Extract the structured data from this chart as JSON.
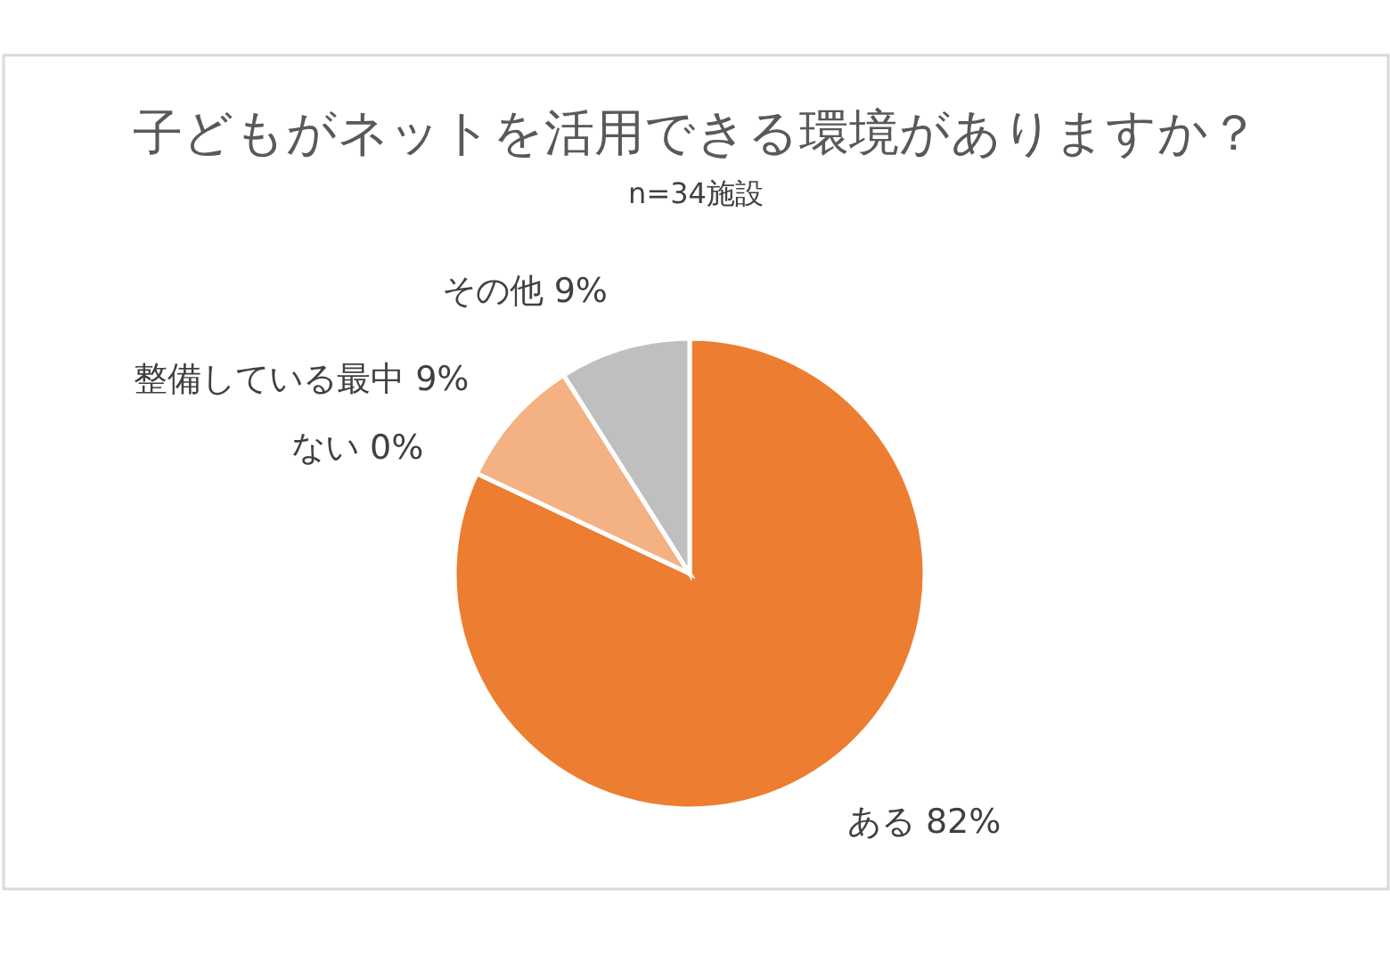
{
  "chart_data": {
    "type": "pie",
    "title": "子どもがネットを活用できる環境がありますか？",
    "subtitle": "n=34施設",
    "categories": [
      "ある",
      "ない",
      "整備している最中",
      "その他"
    ],
    "values": [
      82,
      0,
      9,
      9
    ],
    "colors": [
      "#ed7d31",
      "#c55a11",
      "#f4b183",
      "#bfbfbf"
    ],
    "value_labels": [
      "82%",
      "0%",
      "9%",
      "9%"
    ],
    "legend": false
  }
}
